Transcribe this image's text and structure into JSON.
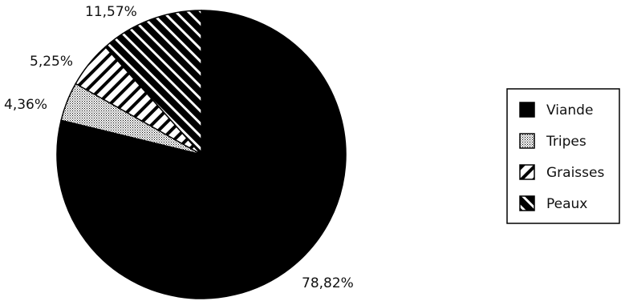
{
  "chart_data": {
    "type": "pie",
    "title": "",
    "slices": [
      {
        "label": "Viande",
        "value": 78.82,
        "display": "78,82%",
        "pattern": "solid-black"
      },
      {
        "label": "Tripes",
        "value": 4.36,
        "display": "4,36%",
        "pattern": "dotted"
      },
      {
        "label": "Graisses",
        "value": 5.25,
        "display": "5,25%",
        "pattern": "diagonal-forward-white"
      },
      {
        "label": "Peaux",
        "value": 11.57,
        "display": "11,57%",
        "pattern": "diagonal-back-black"
      }
    ],
    "start_angle": "12 o'clock",
    "direction": "clockwise",
    "legend": {
      "position": "right",
      "entries": [
        "Viande",
        "Tripes",
        "Graisses",
        "Peaux"
      ]
    }
  },
  "colors": {
    "fill_dark": "#000000",
    "fill_light": "#ffffff",
    "outline": "#000000"
  }
}
